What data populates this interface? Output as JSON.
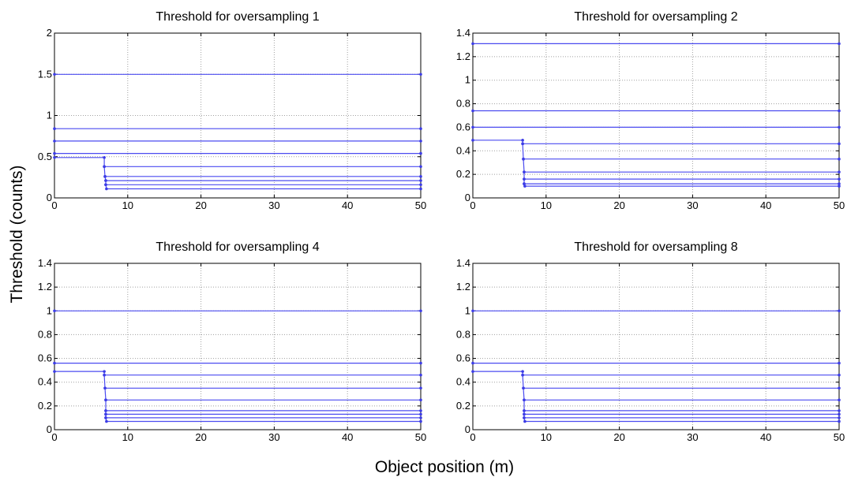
{
  "figure": {
    "ylabel": "Threshold (counts)",
    "xlabel": "Object position (m)"
  },
  "colors": {
    "series": "#4b4bf0",
    "marker": "#3c3ce6",
    "grid": "#a0a0a0"
  },
  "chart_data": [
    {
      "type": "line",
      "title": "Threshold for oversampling 1",
      "xlim": [
        0,
        50
      ],
      "ylim": [
        0,
        2
      ],
      "xticks": [
        0,
        10,
        20,
        30,
        40,
        50
      ],
      "yticks": [
        0,
        0.5,
        1,
        1.5,
        2
      ],
      "ytick_labels": [
        "0",
        "0.5",
        "1",
        "1.5",
        "2"
      ],
      "grid": true,
      "series": [
        {
          "x": [
            0,
            50
          ],
          "y": [
            1.5,
            1.5
          ]
        },
        {
          "x": [
            0,
            50
          ],
          "y": [
            0.84,
            0.84
          ]
        },
        {
          "x": [
            0,
            50
          ],
          "y": [
            0.69,
            0.69
          ]
        },
        {
          "x": [
            0,
            50
          ],
          "y": [
            0.54,
            0.54
          ]
        },
        {
          "x": [
            0,
            6.8,
            6.8,
            50
          ],
          "y": [
            0.49,
            0.49,
            0.38,
            0.38
          ]
        },
        {
          "x": [
            6.8,
            6.9,
            50
          ],
          "y": [
            0.38,
            0.26,
            0.26
          ]
        },
        {
          "x": [
            6.9,
            7.0,
            50
          ],
          "y": [
            0.26,
            0.21,
            0.21
          ]
        },
        {
          "x": [
            7.0,
            7.0,
            50
          ],
          "y": [
            0.21,
            0.16,
            0.16
          ]
        },
        {
          "x": [
            7.0,
            7.1,
            50
          ],
          "y": [
            0.16,
            0.11,
            0.11
          ]
        }
      ]
    },
    {
      "type": "line",
      "title": "Threshold for oversampling 2",
      "xlim": [
        0,
        50
      ],
      "ylim": [
        0,
        1.4
      ],
      "xticks": [
        0,
        10,
        20,
        30,
        40,
        50
      ],
      "yticks": [
        0,
        0.2,
        0.4,
        0.6,
        0.8,
        1,
        1.2,
        1.4
      ],
      "ytick_labels": [
        "0",
        "0.2",
        "0.4",
        "0.6",
        "0.8",
        "1",
        "1.2",
        "1.4"
      ],
      "grid": true,
      "series": [
        {
          "x": [
            0,
            50
          ],
          "y": [
            1.31,
            1.31
          ]
        },
        {
          "x": [
            0,
            50
          ],
          "y": [
            0.74,
            0.74
          ]
        },
        {
          "x": [
            0,
            50
          ],
          "y": [
            0.6,
            0.6
          ]
        },
        {
          "x": [
            0,
            6.8,
            6.8,
            50
          ],
          "y": [
            0.49,
            0.49,
            0.46,
            0.46
          ]
        },
        {
          "x": [
            6.8,
            6.9,
            50
          ],
          "y": [
            0.46,
            0.33,
            0.33
          ]
        },
        {
          "x": [
            6.9,
            7.0,
            50
          ],
          "y": [
            0.33,
            0.22,
            0.22
          ]
        },
        {
          "x": [
            7.0,
            7.0,
            50
          ],
          "y": [
            0.22,
            0.16,
            0.16
          ]
        },
        {
          "x": [
            7.0,
            7.0,
            50
          ],
          "y": [
            0.16,
            0.12,
            0.12
          ]
        },
        {
          "x": [
            7.0,
            7.1,
            50
          ],
          "y": [
            0.12,
            0.1,
            0.1
          ]
        }
      ]
    },
    {
      "type": "line",
      "title": "Threshold for oversampling 4",
      "xlim": [
        0,
        50
      ],
      "ylim": [
        0,
        1.4
      ],
      "xticks": [
        0,
        10,
        20,
        30,
        40,
        50
      ],
      "yticks": [
        0,
        0.2,
        0.4,
        0.6,
        0.8,
        1,
        1.2,
        1.4
      ],
      "ytick_labels": [
        "0",
        "0.2",
        "0.4",
        "0.6",
        "0.8",
        "1",
        "1.2",
        "1.4"
      ],
      "grid": true,
      "series": [
        {
          "x": [
            0,
            50
          ],
          "y": [
            1.0,
            1.0
          ]
        },
        {
          "x": [
            0,
            50
          ],
          "y": [
            0.56,
            0.56
          ]
        },
        {
          "x": [
            0,
            6.8,
            6.8,
            50
          ],
          "y": [
            0.49,
            0.49,
            0.46,
            0.46
          ]
        },
        {
          "x": [
            6.8,
            6.9,
            50
          ],
          "y": [
            0.46,
            0.35,
            0.35
          ]
        },
        {
          "x": [
            6.9,
            7.0,
            50
          ],
          "y": [
            0.35,
            0.25,
            0.25
          ]
        },
        {
          "x": [
            7.0,
            7.0,
            50
          ],
          "y": [
            0.25,
            0.16,
            0.16
          ]
        },
        {
          "x": [
            7.0,
            7.0,
            50
          ],
          "y": [
            0.16,
            0.13,
            0.13
          ]
        },
        {
          "x": [
            7.0,
            7.0,
            50
          ],
          "y": [
            0.13,
            0.1,
            0.1
          ]
        },
        {
          "x": [
            7.0,
            7.1,
            50
          ],
          "y": [
            0.1,
            0.07,
            0.07
          ]
        }
      ]
    },
    {
      "type": "line",
      "title": "Threshold for oversampling 8",
      "xlim": [
        0,
        50
      ],
      "ylim": [
        0,
        1.4
      ],
      "xticks": [
        0,
        10,
        20,
        30,
        40,
        50
      ],
      "yticks": [
        0,
        0.2,
        0.4,
        0.6,
        0.8,
        1,
        1.2,
        1.4
      ],
      "ytick_labels": [
        "0",
        "0.2",
        "0.4",
        "0.6",
        "0.8",
        "1",
        "1.2",
        "1.4"
      ],
      "grid": true,
      "series": [
        {
          "x": [
            0,
            50
          ],
          "y": [
            1.0,
            1.0
          ]
        },
        {
          "x": [
            0,
            50
          ],
          "y": [
            0.56,
            0.56
          ]
        },
        {
          "x": [
            0,
            6.8,
            6.8,
            50
          ],
          "y": [
            0.49,
            0.49,
            0.46,
            0.46
          ]
        },
        {
          "x": [
            6.8,
            6.9,
            50
          ],
          "y": [
            0.46,
            0.35,
            0.35
          ]
        },
        {
          "x": [
            6.9,
            7.0,
            50
          ],
          "y": [
            0.35,
            0.25,
            0.25
          ]
        },
        {
          "x": [
            7.0,
            7.0,
            50
          ],
          "y": [
            0.25,
            0.16,
            0.16
          ]
        },
        {
          "x": [
            7.0,
            7.0,
            50
          ],
          "y": [
            0.16,
            0.13,
            0.13
          ]
        },
        {
          "x": [
            7.0,
            7.0,
            50
          ],
          "y": [
            0.13,
            0.1,
            0.1
          ]
        },
        {
          "x": [
            7.0,
            7.1,
            50
          ],
          "y": [
            0.1,
            0.07,
            0.07
          ]
        }
      ]
    }
  ]
}
